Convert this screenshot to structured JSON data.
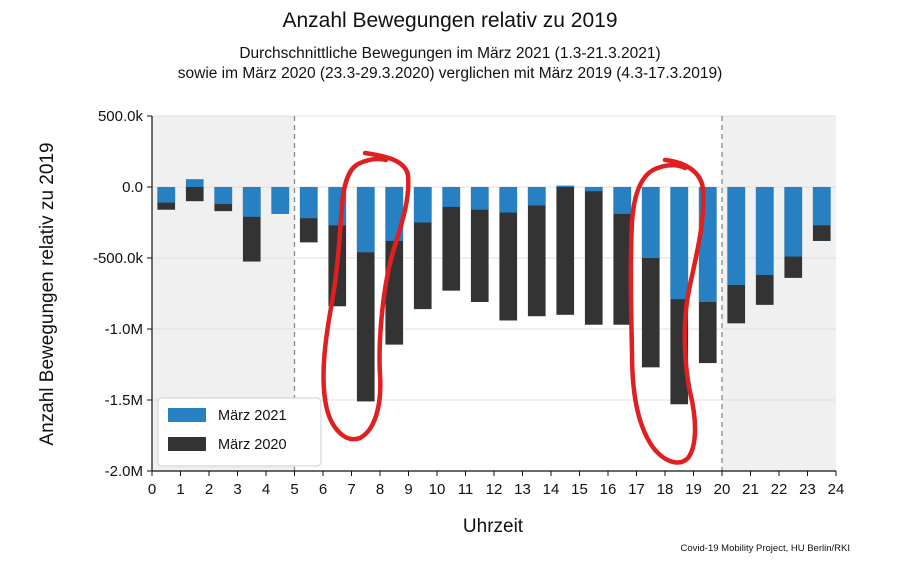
{
  "chart_data": {
    "type": "bar",
    "title": "Anzahl Bewegungen relativ zu 2019",
    "subtitle_lines": [
      "Durchschnittliche Bewegungen im März 2021 (1.3-21.3.2021)",
      "sowie im März 2020 (23.3-29.3.2020) verglichen mit März 2019 (4.3-17.3.2019)"
    ],
    "xlabel": "Uhrzeit",
    "ylabel": "Anzahl Bewegungen relativ zu 2019",
    "xlim": [
      0,
      24
    ],
    "ylim": [
      -2000000,
      500000
    ],
    "x_ticks": [
      "0",
      "1",
      "2",
      "3",
      "4",
      "5",
      "6",
      "7",
      "8",
      "9",
      "10",
      "11",
      "12",
      "13",
      "14",
      "15",
      "16",
      "17",
      "18",
      "19",
      "20",
      "21",
      "22",
      "23",
      "24"
    ],
    "y_ticks": [
      {
        "value": 500000,
        "label": "500.0k"
      },
      {
        "value": 0,
        "label": "0.0"
      },
      {
        "value": -500000,
        "label": "-500.0k"
      },
      {
        "value": -1000000,
        "label": "-1.0M"
      },
      {
        "value": -1500000,
        "label": "-1.5M"
      },
      {
        "value": -2000000,
        "label": "-2.0M"
      }
    ],
    "night_shading": [
      [
        0,
        5
      ],
      [
        20,
        24
      ]
    ],
    "dashed_lines": [
      5,
      20
    ],
    "series": [
      {
        "name": "März 2020",
        "color": "#333333",
        "values": [
          -160000,
          -100000,
          -170000,
          -525000,
          -170000,
          -390000,
          -840000,
          -1510000,
          -1110000,
          -860000,
          -730000,
          -810000,
          -940000,
          -910000,
          -900000,
          -970000,
          -970000,
          -1270000,
          -1530000,
          -1240000,
          -960000,
          -830000,
          -640000,
          -380000
        ]
      },
      {
        "name": "März 2021",
        "color": "#2680c2",
        "values": [
          -110000,
          55000,
          -120000,
          -210000,
          -190000,
          -220000,
          -270000,
          -460000,
          -380000,
          -250000,
          -140000,
          -160000,
          -180000,
          -130000,
          10000,
          -30000,
          -190000,
          -500000,
          -790000,
          -810000,
          -690000,
          -620000,
          -490000,
          -270000
        ]
      }
    ],
    "legend": {
      "position": "lower-left",
      "entries": [
        "März 2021",
        "März 2020"
      ]
    },
    "annotations": [
      {
        "type": "freehand-loop",
        "color": "#e02020",
        "around_hours": [
          7,
          8
        ]
      },
      {
        "type": "freehand-loop",
        "color": "#e02020",
        "around_hours": [
          17,
          19
        ]
      }
    ]
  },
  "credit": "Covid-19 Mobility Project, HU Berlin/RKI"
}
